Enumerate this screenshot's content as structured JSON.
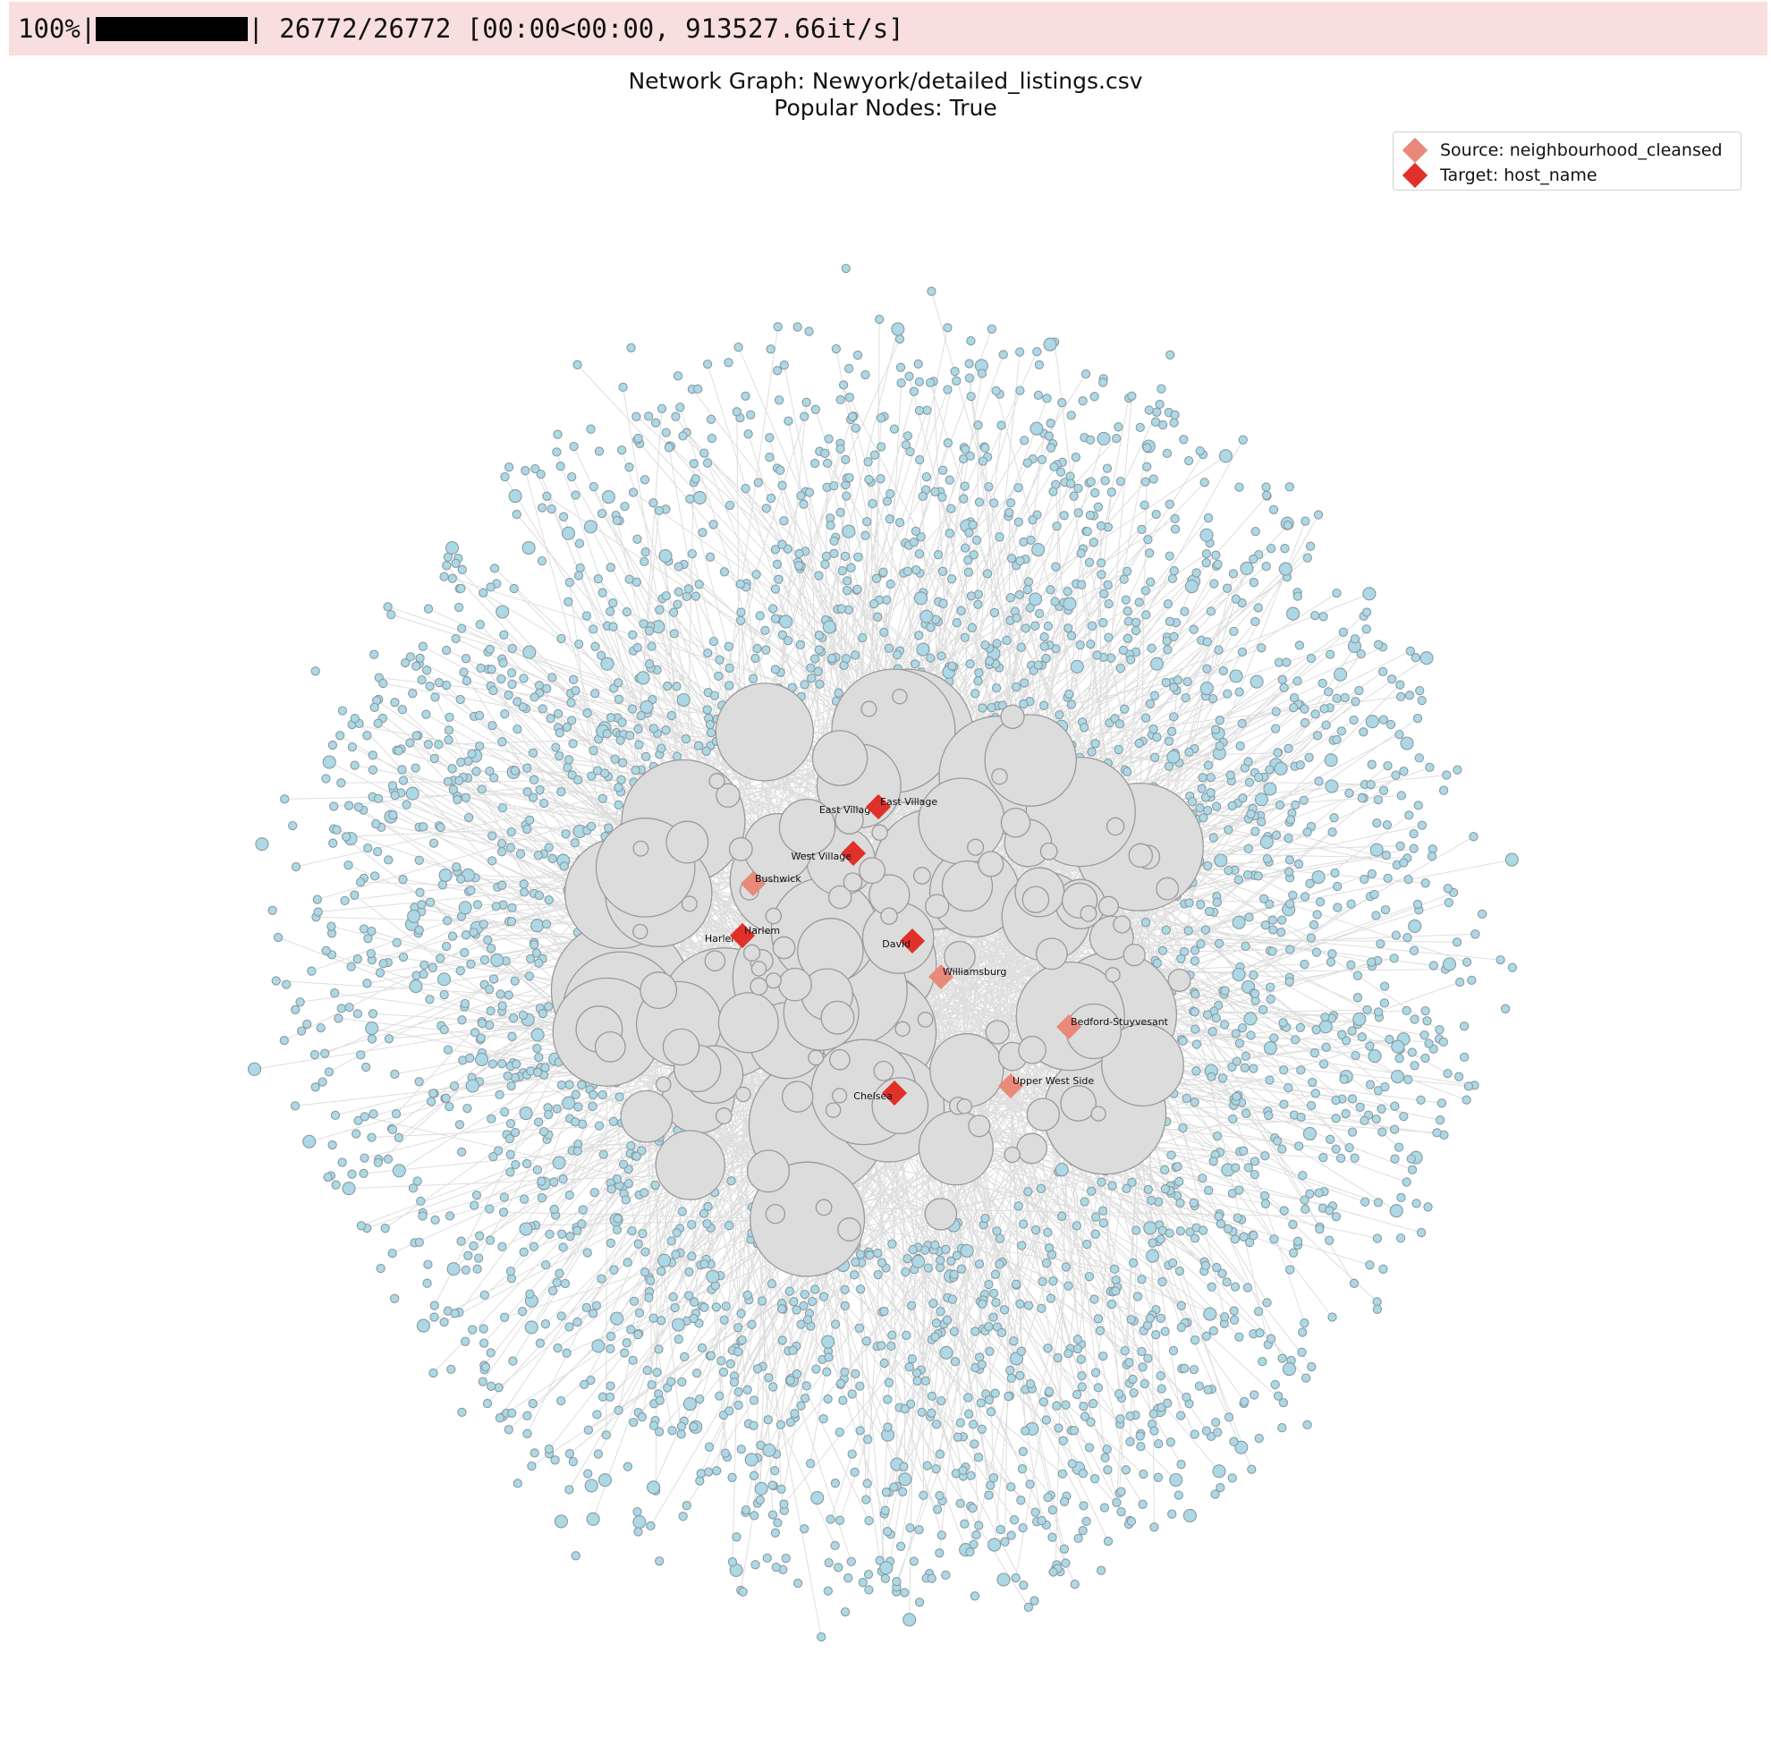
{
  "progress": {
    "percent_text": "100%|",
    "fraction": 1.0,
    "suffix_text": "| 26772/26772 [00:00<00:00, 913527.66it/s]"
  },
  "title": {
    "line1": "Network Graph: Newyork/detailed_listings.csv",
    "line2": "Popular Nodes: True"
  },
  "legend": {
    "source_label": "Source: neighbourhood_cleansed",
    "target_label": "Target: host_name",
    "source_color": "#e8897a",
    "target_color": "#e0302a"
  },
  "colors": {
    "node_fill": "#add8e6",
    "node_stroke": "#8a9aa0",
    "hub_fill": "#dcdcdc",
    "hub_stroke": "#9a9a9a",
    "edge": "#d8d8d8"
  },
  "chart_data": {
    "type": "network",
    "popular_nodes": [
      {
        "name": "East Village",
        "role": "source"
      },
      {
        "name": "East Village",
        "role": "target"
      },
      {
        "name": "West Village",
        "role": "target"
      },
      {
        "name": "Bushwick",
        "role": "source"
      },
      {
        "name": "Harlem",
        "role": "source"
      },
      {
        "name": "Harlem",
        "role": "target"
      },
      {
        "name": "David",
        "role": "target"
      },
      {
        "name": "Williamsburg",
        "role": "source"
      },
      {
        "name": "Bedford-Stuyvesant",
        "role": "source"
      },
      {
        "name": "Upper West Side",
        "role": "source"
      },
      {
        "name": "Chelsea",
        "role": "target"
      }
    ]
  }
}
